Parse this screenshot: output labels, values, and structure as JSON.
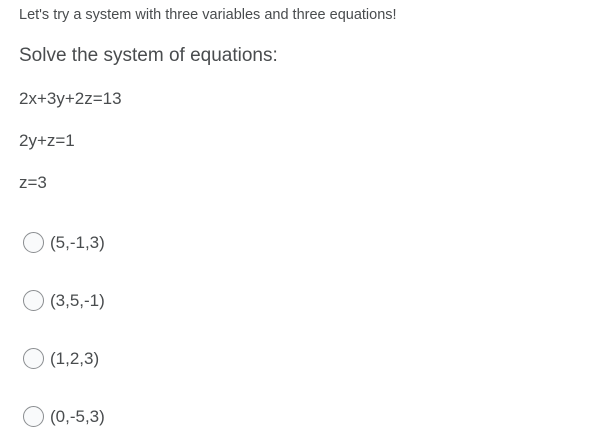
{
  "question": {
    "intro": "Let's try a system with three variables and three equations!",
    "prompt": "Solve the system of equations:",
    "equations": [
      "2x+3y+2z=13",
      "2y+z=1",
      "z=3"
    ]
  },
  "options": [
    {
      "label": "(5,-1,3)",
      "selected": false
    },
    {
      "label": "(3,5,-1)",
      "selected": false
    },
    {
      "label": "(1,2,3)",
      "selected": false
    },
    {
      "label": "(0,-5,3)",
      "selected": false
    }
  ]
}
